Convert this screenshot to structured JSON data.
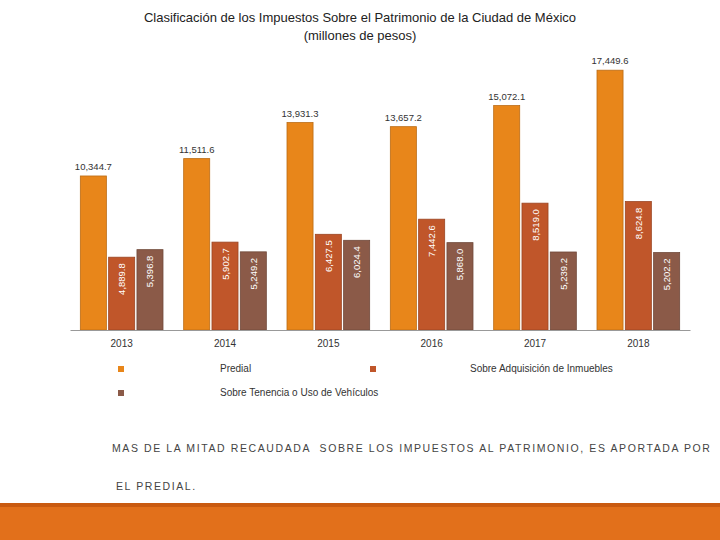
{
  "chart_data": {
    "type": "bar",
    "title": "Clasificación de los Impuestos Sobre el Patrimonio de la Ciudad de México",
    "subtitle": "(millones de pesos)",
    "categories": [
      "2013",
      "2014",
      "2015",
      "2016",
      "2017",
      "2018"
    ],
    "series": [
      {
        "name": "Predial",
        "color": "#e8861a",
        "values": [
          10344.7,
          11511.6,
          13931.3,
          13657.2,
          15072.1,
          17449.6
        ],
        "value_labels": [
          "10,344.7",
          "11,511.6",
          "13,931.3",
          "13,657.2",
          "15,072.1",
          "17,449.6"
        ]
      },
      {
        "name": "Sobre Adquisición de Inmuebles",
        "color": "#c0562a",
        "values": [
          4889.8,
          5902.7,
          6427.5,
          7442.6,
          8519.0,
          8624.8
        ],
        "value_labels": [
          "4,889.8",
          "5,902.7",
          "6,427.5",
          "7,442.6",
          "8,519.0",
          "8,624.8"
        ]
      },
      {
        "name": "Sobre Tenencia o Uso de Vehículos",
        "color": "#8b5a48",
        "values": [
          5396.8,
          5249.2,
          6024.4,
          5868.0,
          5239.2,
          5202.2
        ],
        "value_labels": [
          "5,396.8",
          "5,249.2",
          "6,024.4",
          "5,868.0",
          "5,239.2",
          "5,202.2"
        ]
      }
    ],
    "ylim": [
      0,
      18000
    ],
    "data_labels": true,
    "tick_labels": "x",
    "grid": false,
    "annotations": [
      "MAS DE LA MITAD RECAUDADA  SOBRE LOS IMPUESTOS AL PATRIMONIO, ES APORTADA POR",
      "EL PREDIAL."
    ]
  }
}
